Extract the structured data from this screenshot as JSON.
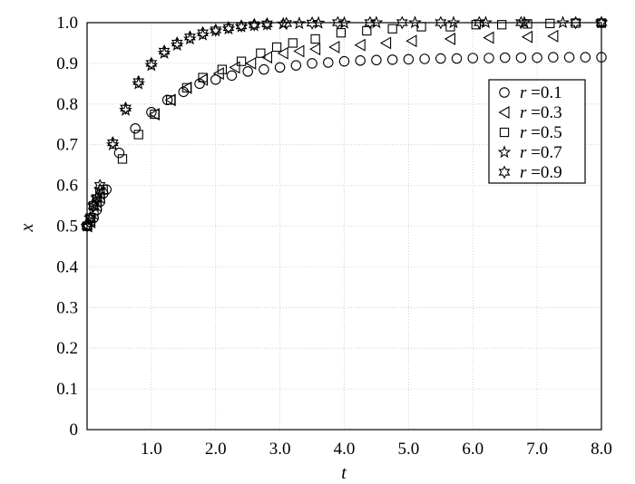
{
  "chart_data": {
    "type": "scatter",
    "title": "",
    "xlabel": "t",
    "ylabel": "x",
    "xlim": [
      0,
      8
    ],
    "ylim": [
      0,
      1
    ],
    "xticks": [
      {
        "value": 1,
        "label": "1.0"
      },
      {
        "value": 2,
        "label": "2.0"
      },
      {
        "value": 3,
        "label": "3.0"
      },
      {
        "value": 4,
        "label": "4.0"
      },
      {
        "value": 5,
        "label": "5.0"
      },
      {
        "value": 6,
        "label": "6.0"
      },
      {
        "value": 7,
        "label": "7.0"
      },
      {
        "value": 8,
        "label": "8.0"
      }
    ],
    "yticks": [
      {
        "value": 0,
        "label": "0"
      },
      {
        "value": 0.1,
        "label": "0.1"
      },
      {
        "value": 0.2,
        "label": "0.2"
      },
      {
        "value": 0.3,
        "label": "0.3"
      },
      {
        "value": 0.4,
        "label": "0.4"
      },
      {
        "value": 0.5,
        "label": "0.5"
      },
      {
        "value": 0.6,
        "label": "0.6"
      },
      {
        "value": 0.7,
        "label": "0.7"
      },
      {
        "value": 0.8,
        "label": "0.8"
      },
      {
        "value": 0.9,
        "label": "0.9"
      },
      {
        "value": 1.0,
        "label": "1.0"
      }
    ],
    "grid": true,
    "legend_position": "top-right",
    "series": [
      {
        "label_var": "r",
        "label_value": "=0.1",
        "marker": "circle",
        "points": [
          [
            0,
            0.5
          ],
          [
            0.05,
            0.51
          ],
          [
            0.1,
            0.52
          ],
          [
            0.15,
            0.54
          ],
          [
            0.2,
            0.56
          ],
          [
            0.25,
            0.58
          ],
          [
            0.3,
            0.59
          ],
          [
            0.5,
            0.68
          ],
          [
            0.75,
            0.74
          ],
          [
            1.0,
            0.78
          ],
          [
            1.25,
            0.81
          ],
          [
            1.5,
            0.83
          ],
          [
            1.75,
            0.85
          ],
          [
            2.0,
            0.86
          ],
          [
            2.25,
            0.87
          ],
          [
            2.5,
            0.88
          ],
          [
            2.75,
            0.885
          ],
          [
            3.0,
            0.89
          ],
          [
            3.25,
            0.895
          ],
          [
            3.5,
            0.9
          ],
          [
            3.75,
            0.902
          ],
          [
            4.0,
            0.905
          ],
          [
            4.25,
            0.907
          ],
          [
            4.5,
            0.908
          ],
          [
            4.75,
            0.909
          ],
          [
            5.0,
            0.91
          ],
          [
            5.25,
            0.911
          ],
          [
            5.5,
            0.912
          ],
          [
            5.75,
            0.912
          ],
          [
            6.0,
            0.913
          ],
          [
            6.25,
            0.913
          ],
          [
            6.5,
            0.914
          ],
          [
            6.75,
            0.914
          ],
          [
            7.0,
            0.914
          ],
          [
            7.25,
            0.915
          ],
          [
            7.5,
            0.915
          ],
          [
            7.75,
            0.915
          ],
          [
            8.0,
            0.915
          ]
        ]
      },
      {
        "label_var": "r",
        "label_value": "=0.3",
        "marker": "triangle-left",
        "points": [
          [
            0,
            0.5
          ],
          [
            0.05,
            0.51
          ],
          [
            0.1,
            0.53
          ],
          [
            0.15,
            0.55
          ],
          [
            0.2,
            0.57
          ],
          [
            1.05,
            0.775
          ],
          [
            1.3,
            0.81
          ],
          [
            1.55,
            0.84
          ],
          [
            1.8,
            0.86
          ],
          [
            2.05,
            0.875
          ],
          [
            2.3,
            0.89
          ],
          [
            2.55,
            0.9
          ],
          [
            2.8,
            0.915
          ],
          [
            3.05,
            0.925
          ],
          [
            3.3,
            0.93
          ],
          [
            3.55,
            0.935
          ],
          [
            3.85,
            0.94
          ],
          [
            4.25,
            0.945
          ],
          [
            4.65,
            0.95
          ],
          [
            5.05,
            0.955
          ],
          [
            5.65,
            0.96
          ],
          [
            6.25,
            0.963
          ],
          [
            6.85,
            0.965
          ],
          [
            7.25,
            0.967
          ]
        ]
      },
      {
        "label_var": "r",
        "label_value": "=0.5",
        "marker": "square",
        "points": [
          [
            0,
            0.5
          ],
          [
            0.05,
            0.52
          ],
          [
            0.1,
            0.55
          ],
          [
            0.15,
            0.56
          ],
          [
            0.2,
            0.58
          ],
          [
            0.25,
            0.59
          ],
          [
            0.55,
            0.665
          ],
          [
            0.8,
            0.725
          ],
          [
            1.05,
            0.775
          ],
          [
            1.3,
            0.81
          ],
          [
            1.55,
            0.84
          ],
          [
            1.8,
            0.865
          ],
          [
            2.1,
            0.885
          ],
          [
            2.4,
            0.905
          ],
          [
            2.7,
            0.925
          ],
          [
            2.95,
            0.94
          ],
          [
            3.2,
            0.95
          ],
          [
            3.55,
            0.96
          ],
          [
            3.95,
            0.975
          ],
          [
            4.35,
            0.98
          ],
          [
            4.75,
            0.985
          ],
          [
            5.2,
            0.99
          ],
          [
            5.65,
            0.99
          ],
          [
            6.05,
            0.995
          ],
          [
            6.45,
            0.995
          ],
          [
            6.85,
            0.997
          ],
          [
            7.2,
            0.998
          ],
          [
            7.6,
            0.999
          ],
          [
            8.0,
            0.999
          ]
        ]
      },
      {
        "label_var": "r",
        "label_value": "=0.7",
        "marker": "star5",
        "points": [
          [
            0,
            0.5
          ],
          [
            0.05,
            0.52
          ],
          [
            0.1,
            0.55
          ],
          [
            0.15,
            0.57
          ],
          [
            0.2,
            0.59
          ],
          [
            0.4,
            0.7
          ],
          [
            0.6,
            0.785
          ],
          [
            0.8,
            0.85
          ],
          [
            1.0,
            0.895
          ],
          [
            1.2,
            0.925
          ],
          [
            1.4,
            0.945
          ],
          [
            1.6,
            0.96
          ],
          [
            1.8,
            0.97
          ],
          [
            2.0,
            0.98
          ],
          [
            2.2,
            0.985
          ],
          [
            2.4,
            0.99
          ],
          [
            2.6,
            0.993
          ],
          [
            2.8,
            0.995
          ],
          [
            3.05,
            0.997
          ],
          [
            3.3,
            0.998
          ],
          [
            3.6,
            0.999
          ],
          [
            4.0,
            0.999
          ],
          [
            4.5,
            1.0
          ],
          [
            5.1,
            1.0
          ],
          [
            5.7,
            1.0
          ],
          [
            6.2,
            1.0
          ],
          [
            6.8,
            1.0
          ],
          [
            7.4,
            1.0
          ],
          [
            8.0,
            1.0
          ]
        ]
      },
      {
        "label_var": "r",
        "label_value": "=0.9",
        "marker": "star6",
        "points": [
          [
            0,
            0.5
          ],
          [
            0.05,
            0.52
          ],
          [
            0.1,
            0.55
          ],
          [
            0.15,
            0.57
          ],
          [
            0.2,
            0.6
          ],
          [
            0.4,
            0.705
          ],
          [
            0.6,
            0.79
          ],
          [
            0.8,
            0.855
          ],
          [
            1.0,
            0.9
          ],
          [
            1.2,
            0.93
          ],
          [
            1.4,
            0.95
          ],
          [
            1.6,
            0.965
          ],
          [
            1.8,
            0.975
          ],
          [
            2.0,
            0.982
          ],
          [
            2.2,
            0.988
          ],
          [
            2.4,
            0.992
          ],
          [
            2.6,
            0.995
          ],
          [
            2.8,
            0.997
          ],
          [
            3.1,
            0.998
          ],
          [
            3.5,
            0.999
          ],
          [
            3.9,
            1.0
          ],
          [
            4.4,
            1.0
          ],
          [
            4.9,
            1.0
          ],
          [
            5.5,
            1.0
          ],
          [
            6.1,
            1.0
          ],
          [
            6.75,
            1.0
          ],
          [
            7.6,
            1.0
          ],
          [
            8.0,
            1.0
          ]
        ]
      }
    ]
  }
}
